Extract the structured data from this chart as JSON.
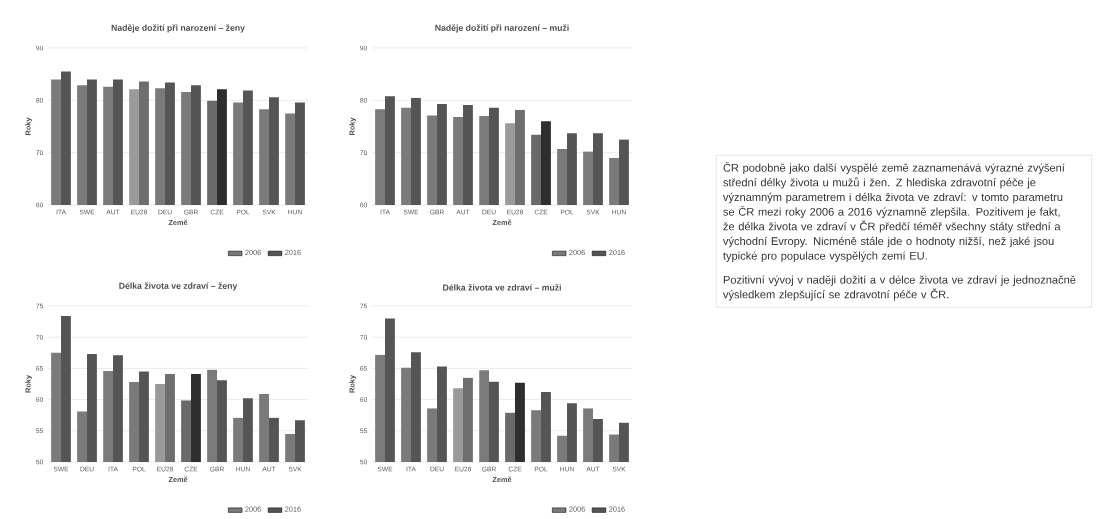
{
  "chart_data": [
    {
      "type": "bar",
      "title": "Naděje dožití při narození – ženy",
      "xlabel": "Země",
      "ylabel": "Roky",
      "categories": [
        "ITA",
        "SWE",
        "AUT",
        "EU28",
        "DEU",
        "GBR",
        "CZE",
        "POL",
        "SVK",
        "HUN"
      ],
      "series": [
        {
          "name": "2006",
          "color": "#7a7a7a",
          "colors": [
            "#7a7a7a",
            "#7a7a7a",
            "#7a7a7a",
            "#9a9a9a",
            "#7a7a7a",
            "#7a7a7a",
            "#6a6a6a",
            "#7a7a7a",
            "#7a7a7a",
            "#7a7a7a"
          ],
          "values": [
            84.0,
            82.9,
            82.6,
            82.1,
            82.3,
            81.6,
            79.9,
            79.6,
            78.3,
            77.5
          ]
        },
        {
          "name": "2016",
          "color": "#555555",
          "colors": [
            "#555555",
            "#555555",
            "#555555",
            "#6e6e6e",
            "#555555",
            "#555555",
            "#2e2e2e",
            "#555555",
            "#555555",
            "#555555"
          ],
          "values": [
            85.5,
            84.0,
            84.0,
            83.6,
            83.4,
            82.9,
            82.1,
            81.9,
            80.6,
            79.6
          ]
        }
      ],
      "ylim": [
        60,
        90
      ],
      "yticks": [
        60,
        70,
        80,
        90
      ],
      "grid": "y",
      "legend": "bottom right"
    },
    {
      "type": "bar",
      "title": "Naděje dožití při narození – muži",
      "xlabel": "Země",
      "ylabel": "Roky",
      "categories": [
        "ITA",
        "SWE",
        "GBR",
        "AUT",
        "DEU",
        "EU28",
        "CZE",
        "POL",
        "SVK",
        "HUN"
      ],
      "series": [
        {
          "name": "2006",
          "color": "#7a7a7a",
          "colors": [
            "#7a7a7a",
            "#7a7a7a",
            "#7a7a7a",
            "#7a7a7a",
            "#7a7a7a",
            "#9a9a9a",
            "#6a6a6a",
            "#7a7a7a",
            "#7a7a7a",
            "#7a7a7a"
          ],
          "values": [
            78.3,
            78.6,
            77.1,
            76.8,
            77.0,
            75.6,
            73.4,
            70.7,
            70.2,
            69.0
          ]
        },
        {
          "name": "2016",
          "color": "#555555",
          "colors": [
            "#555555",
            "#555555",
            "#555555",
            "#555555",
            "#555555",
            "#6e6e6e",
            "#2e2e2e",
            "#555555",
            "#555555",
            "#555555"
          ],
          "values": [
            80.8,
            80.5,
            79.3,
            79.1,
            78.6,
            78.2,
            76.0,
            73.7,
            73.7,
            72.5
          ]
        }
      ],
      "ylim": [
        60,
        90
      ],
      "yticks": [
        60,
        70,
        80,
        90
      ],
      "grid": "y",
      "legend": "bottom right"
    },
    {
      "type": "bar",
      "title": "Délka života ve zdraví – ženy",
      "xlabel": "Země",
      "ylabel": "Roky",
      "categories": [
        "SWE",
        "DEU",
        "ITA",
        "POL",
        "EU28",
        "CZE",
        "GBR",
        "HUN",
        "AUT",
        "SVK"
      ],
      "series": [
        {
          "name": "2006",
          "color": "#7a7a7a",
          "colors": [
            "#7a7a7a",
            "#7a7a7a",
            "#7a7a7a",
            "#7a7a7a",
            "#9a9a9a",
            "#6a6a6a",
            "#7a7a7a",
            "#7a7a7a",
            "#7a7a7a",
            "#7a7a7a"
          ],
          "values": [
            67.5,
            58.1,
            64.6,
            62.8,
            62.5,
            59.9,
            64.8,
            57.1,
            60.9,
            54.5
          ]
        },
        {
          "name": "2016",
          "color": "#555555",
          "colors": [
            "#555555",
            "#555555",
            "#555555",
            "#555555",
            "#6e6e6e",
            "#2e2e2e",
            "#555555",
            "#555555",
            "#555555",
            "#555555"
          ],
          "values": [
            73.4,
            67.3,
            67.1,
            64.5,
            64.1,
            64.1,
            63.1,
            60.2,
            57.1,
            56.7
          ]
        }
      ],
      "ylim": [
        50,
        75
      ],
      "yticks": [
        50,
        55,
        60,
        65,
        70,
        75
      ],
      "grid": "y",
      "legend": "bottom right"
    },
    {
      "type": "bar",
      "title": "Délka života ve zdraví – muži",
      "xlabel": "Země",
      "ylabel": "Roky",
      "categories": [
        "SWE",
        "ITA",
        "DEU",
        "EU28",
        "GBR",
        "CZE",
        "POL",
        "HUN",
        "AUT",
        "SVK"
      ],
      "series": [
        {
          "name": "2006",
          "color": "#7a7a7a",
          "colors": [
            "#7a7a7a",
            "#7a7a7a",
            "#7a7a7a",
            "#9a9a9a",
            "#7a7a7a",
            "#6a6a6a",
            "#7a7a7a",
            "#7a7a7a",
            "#7a7a7a",
            "#7a7a7a"
          ],
          "values": [
            67.2,
            65.1,
            58.6,
            61.8,
            64.7,
            57.9,
            58.3,
            54.2,
            58.6,
            54.4
          ]
        },
        {
          "name": "2016",
          "color": "#555555",
          "colors": [
            "#555555",
            "#555555",
            "#555555",
            "#6e6e6e",
            "#555555",
            "#2e2e2e",
            "#555555",
            "#555555",
            "#555555",
            "#555555"
          ],
          "values": [
            73.0,
            67.6,
            65.3,
            63.5,
            62.9,
            62.7,
            61.2,
            59.4,
            56.9,
            56.3
          ]
        }
      ],
      "ylim": [
        50,
        75
      ],
      "yticks": [
        50,
        55,
        60,
        65,
        70,
        75
      ],
      "grid": "y",
      "legend": "bottom right"
    },
    {
      "type": "other",
      "annotations": [
        "ČR podobně jako další vyspělé země zaznamenává výrazné zvýšení střední délky života u mužů i žen. Z hlediska zdravotní péče je významným parametrem i délka života ve zdraví: v tomto parametru se ČR mezi roky 2006 a 2016 významně zlepšila. Pozitivem je fakt, že délka života ve zdraví v ČR  předčí téměř všechny státy střední a východní Evropy. Nicméně stále jde o hodnoty nižší, než jaké jsou typické pro populace vyspělých zemí EU.",
        "Pozitivní vývoj v naději dožití a v délce života ve zdraví je jednoznačně výsledkem zlepšující se zdravotní péče v ČR."
      ]
    }
  ]
}
